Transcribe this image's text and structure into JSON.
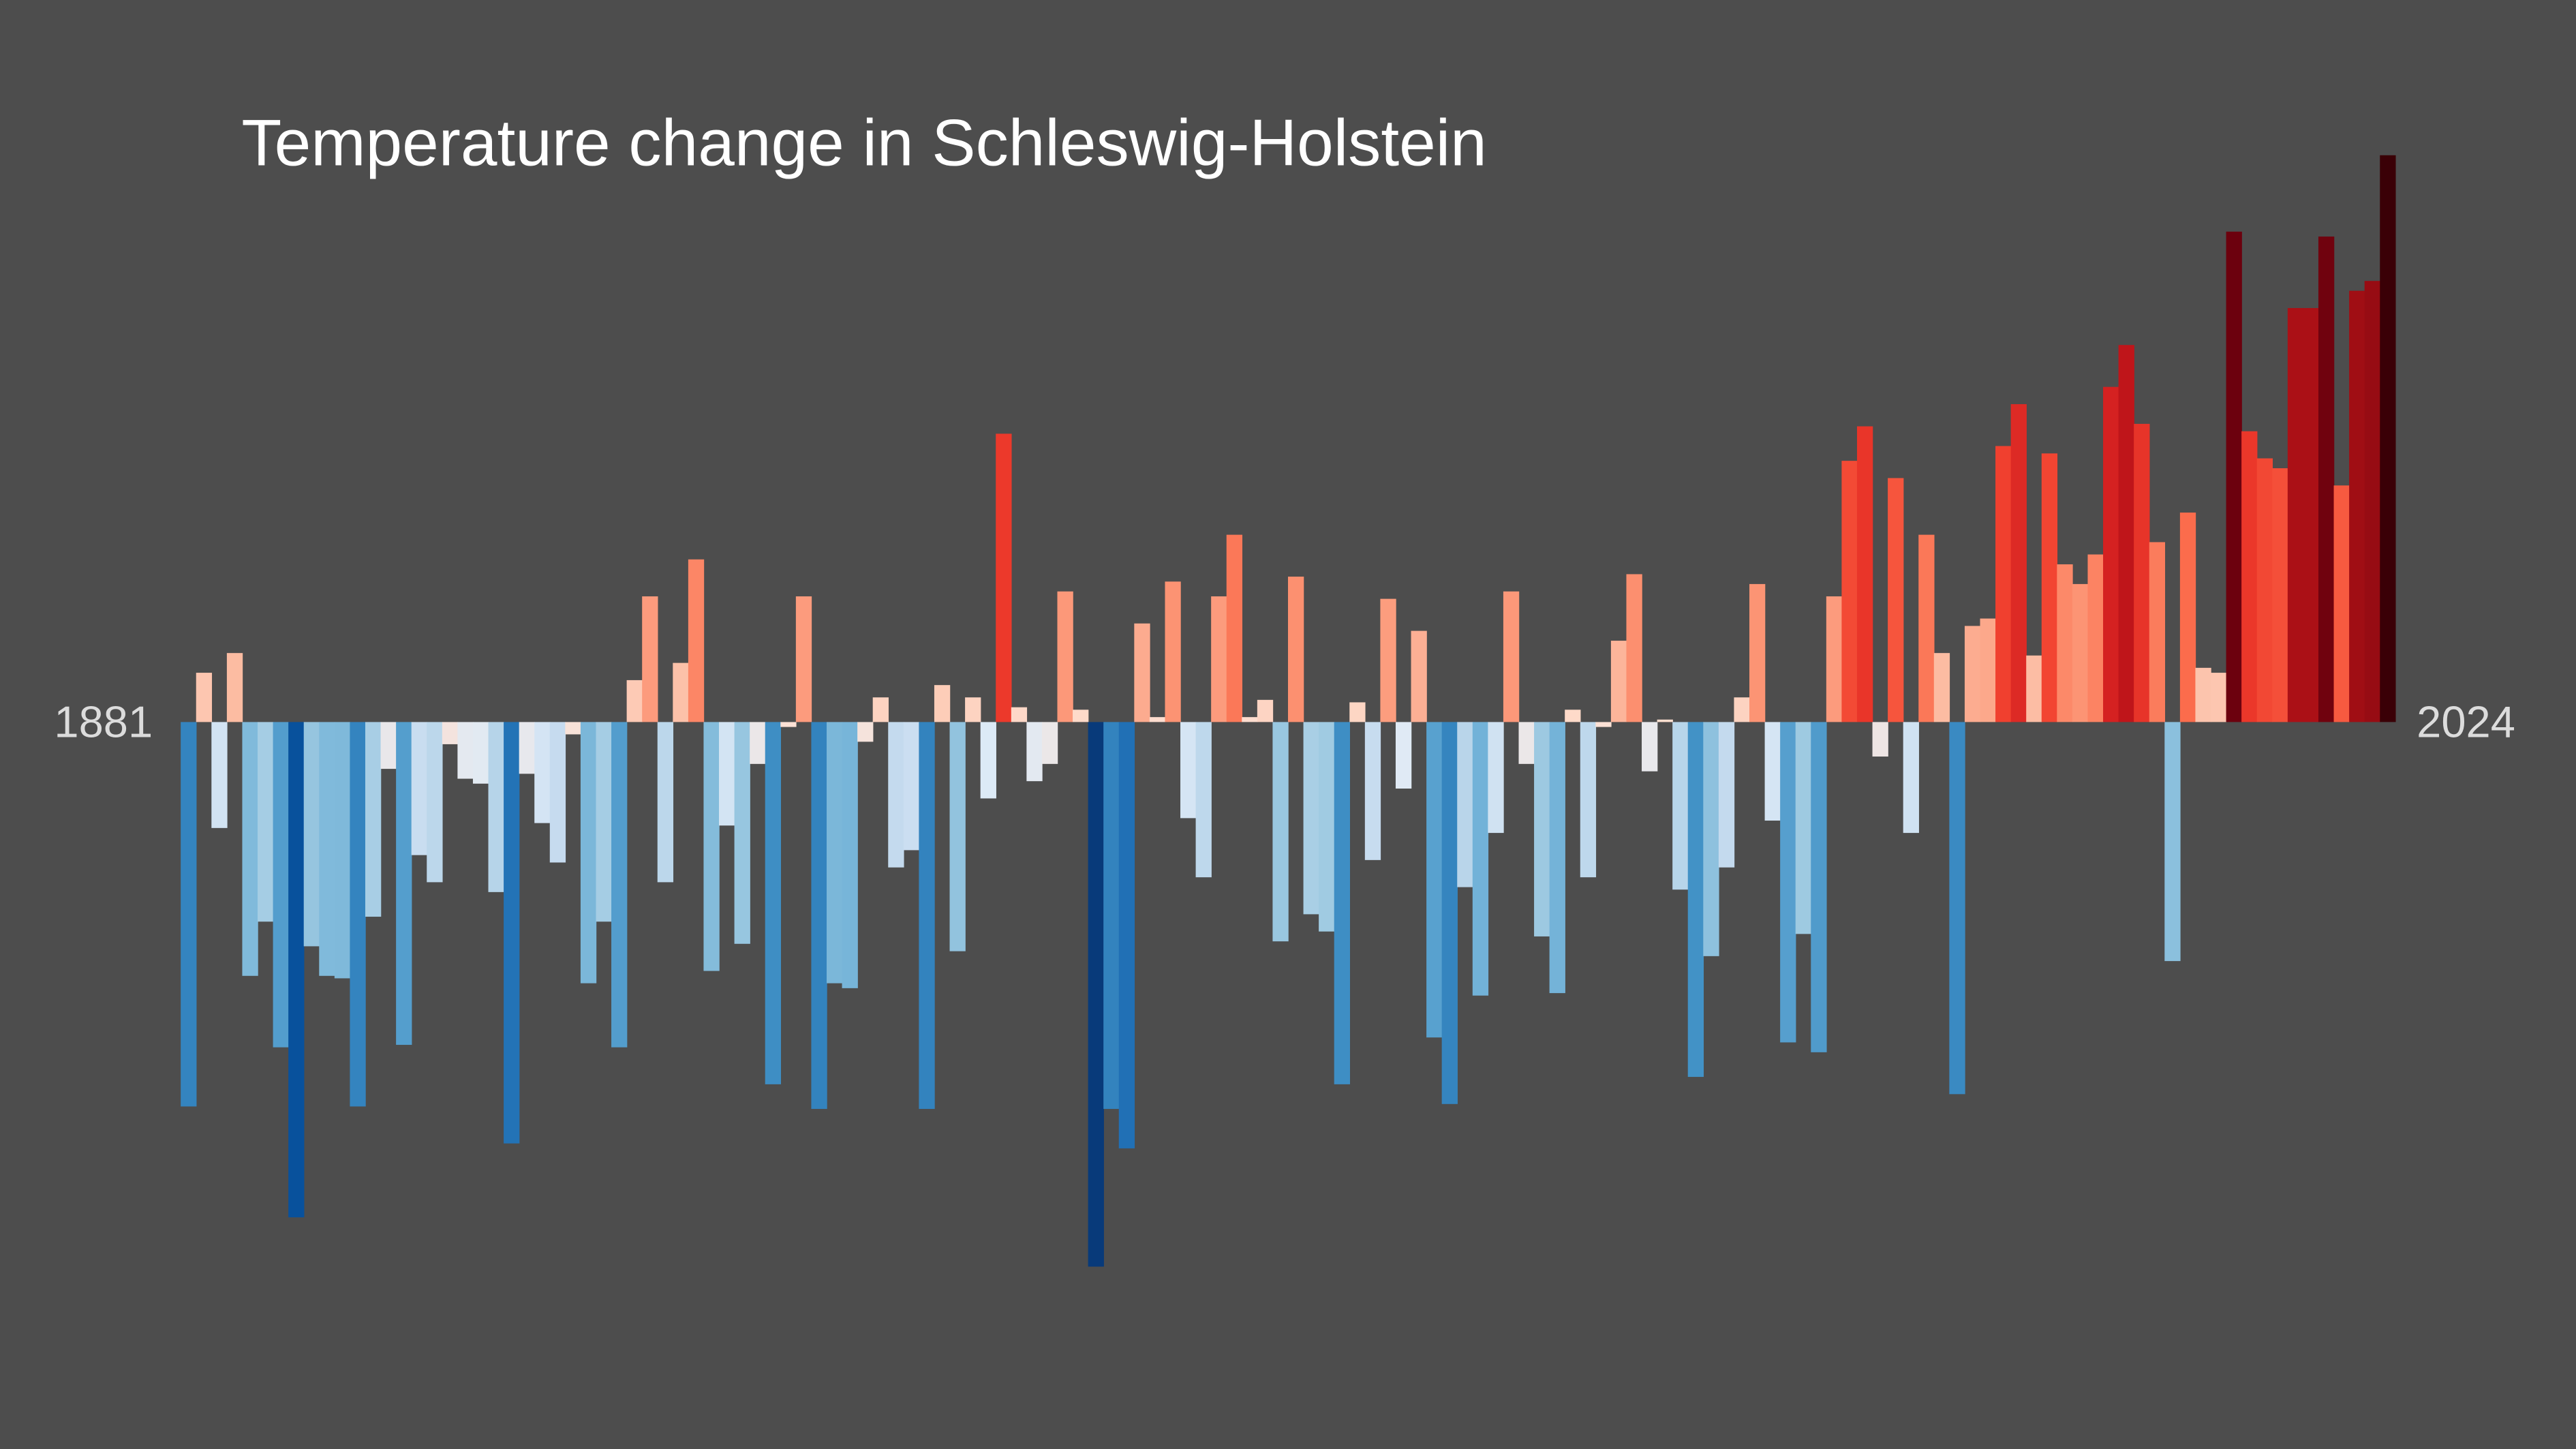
{
  "chart_data": {
    "type": "bar",
    "title": "Temperature change in Schleswig-Holstein",
    "categories": [
      1881,
      null,
      null,
      null,
      null,
      null,
      null,
      null,
      null,
      null,
      null,
      null,
      null,
      null,
      null,
      null,
      null,
      null,
      null,
      null,
      null,
      null,
      null,
      null,
      null,
      null,
      null,
      null,
      null,
      null,
      null,
      null,
      null,
      null,
      null,
      null,
      null,
      null,
      null,
      null,
      null,
      null,
      null,
      null,
      null,
      null,
      null,
      null,
      null,
      null,
      null,
      null,
      null,
      null,
      null,
      null,
      null,
      null,
      null,
      null,
      null,
      null,
      null,
      null,
      null,
      null,
      null,
      null,
      null,
      null,
      null,
      null,
      null,
      null,
      null,
      null,
      null,
      null,
      null,
      null,
      null,
      null,
      null,
      null,
      null,
      null,
      null,
      null,
      null,
      null,
      null,
      null,
      null,
      null,
      null,
      null,
      null,
      null,
      null,
      null,
      null,
      null,
      null,
      null,
      null,
      null,
      null,
      null,
      null,
      null,
      null,
      null,
      null,
      null,
      null,
      null,
      null,
      null,
      null,
      null,
      null,
      null,
      null,
      null,
      null,
      null,
      null,
      null,
      null,
      null,
      null,
      null,
      null,
      null,
      null,
      null,
      null,
      null,
      null,
      null,
      null,
      null,
      null,
      2024
    ],
    "values": [
      -1.56,
      0.2,
      -0.43,
      0.28,
      -1.03,
      -0.81,
      -1.32,
      -2.01,
      -0.91,
      -1.03,
      -1.04,
      -1.56,
      -0.79,
      -0.19,
      -1.31,
      -0.54,
      -0.65,
      -0.09,
      -0.23,
      -0.25,
      -0.69,
      -1.71,
      -0.21,
      -0.41,
      -0.57,
      -0.05,
      -1.06,
      -0.81,
      -1.32,
      0.17,
      0.51,
      -0.65,
      0.24,
      0.66,
      -1.01,
      -0.42,
      -0.9,
      -0.17,
      -1.47,
      -0.02,
      0.51,
      -1.57,
      -1.06,
      -1.08,
      -0.08,
      0.1,
      -0.59,
      -0.52,
      -1.57,
      0.15,
      -0.93,
      0.1,
      -0.31,
      1.17,
      0.06,
      -0.24,
      -0.17,
      0.53,
      0.05,
      -2.21,
      -1.57,
      -1.73,
      0.4,
      0.02,
      0.57,
      -0.39,
      -0.63,
      0.51,
      0.76,
      0.02,
      0.09,
      -0.89,
      0.59,
      -0.78,
      -0.85,
      -1.47,
      0.08,
      -0.56,
      0.5,
      -0.27,
      0.37,
      -1.28,
      -1.55,
      -0.67,
      -1.11,
      -0.45,
      0.53,
      -0.17,
      -0.87,
      -1.1,
      0.05,
      -0.63,
      -0.02,
      0.33,
      0.6,
      -0.2,
      0.01,
      -0.68,
      -1.44,
      -0.95,
      -0.59,
      0.1,
      0.56,
      -0.4,
      -1.3,
      -0.86,
      -1.34,
      0.51,
      1.06,
      1.2,
      -0.14,
      0.99,
      -0.45,
      0.76,
      0.28,
      -1.51,
      0.39,
      0.42,
      1.12,
      1.29,
      0.27,
      1.09,
      0.64,
      0.56,
      0.68,
      1.36,
      1.53,
      1.21,
      0.73,
      -0.97,
      0.85,
      0.22,
      0.2,
      1.99,
      1.18,
      1.07,
      1.03,
      1.68,
      1.68,
      1.97,
      0.96,
      1.75,
      1.79,
      2.3
    ],
    "ylim": [
      -2.95,
      2.93
    ],
    "vlim": [
      -2.3,
      2.3
    ],
    "color_scale": [
      "#08306b",
      "#08519c",
      "#2171b5",
      "#4292c6",
      "#6baed6",
      "#9ecae1",
      "#c6dbef",
      "#deebf7",
      "#fee0d2",
      "#fcbba1",
      "#fc9272",
      "#fb6a4a",
      "#ef3b2c",
      "#cb181d",
      "#a50f15",
      "#67000d",
      "#3a0006"
    ],
    "grid": false
  }
}
